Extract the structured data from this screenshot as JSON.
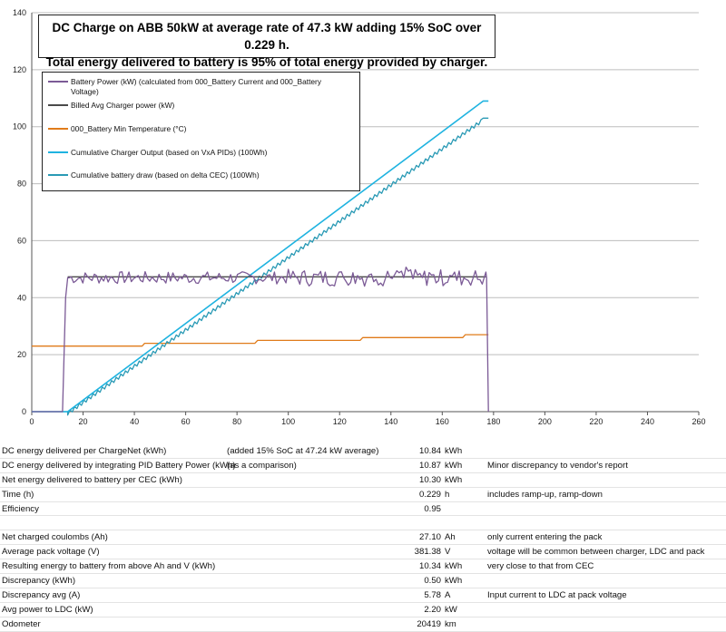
{
  "chart_data": {
    "type": "line",
    "title_line1": "DC Charge on ABB 50kW at average rate of 47.3 kW adding 15% SoC over 0.229 h.",
    "title_line2": "Total energy delivered to battery is 95% of total energy provided by charger.",
    "xlim": [
      0,
      260
    ],
    "ylim": [
      0,
      140
    ],
    "x_ticks": [
      0,
      20,
      40,
      60,
      80,
      100,
      120,
      140,
      160,
      180,
      200,
      220,
      240,
      260
    ],
    "y_ticks": [
      0,
      20,
      40,
      60,
      80,
      100,
      120,
      140
    ],
    "grid": "horizontal",
    "legend_position": "top-left",
    "series": [
      {
        "name": "Battery Power (kW) (calculated from 000_Battery Current and 000_Battery Voltage)",
        "color": "#7b5a96",
        "points": [
          [
            0,
            0
          ],
          [
            12,
            0
          ],
          [
            14,
            47
          ],
          [
            177,
            47
          ],
          [
            178,
            0
          ]
        ]
      },
      {
        "name": "Billed Avg Charger power (kW)",
        "color": "#4a4a4a",
        "points": [
          [
            14,
            47.3
          ],
          [
            177,
            47.3
          ]
        ]
      },
      {
        "name": "000_Battery Min Temperature (°C)",
        "color": "#e07b1a",
        "points": [
          [
            0,
            23
          ],
          [
            43,
            23
          ],
          [
            44,
            24
          ],
          [
            87,
            24
          ],
          [
            88,
            25
          ],
          [
            128,
            25
          ],
          [
            129,
            26
          ],
          [
            168,
            26
          ],
          [
            169,
            27
          ],
          [
            178,
            27
          ]
        ]
      },
      {
        "name": "Cumulative Charger Output (based on VxA PIDs) (100Wh)",
        "color": "#1fb3e0",
        "points": [
          [
            0,
            0
          ],
          [
            14,
            0
          ],
          [
            176,
            109
          ],
          [
            178,
            109
          ]
        ]
      },
      {
        "name": "Cumulative battery draw (based on delta CEC) (100Wh)",
        "color": "#2a9ab5",
        "points": [
          [
            0,
            0
          ],
          [
            14,
            0
          ],
          [
            176,
            103
          ],
          [
            178,
            103
          ]
        ]
      }
    ]
  },
  "table": {
    "rows": [
      [
        "DC energy delivered per ChargeNet (kWh)",
        "(added 15% SoC at 47.24 kW average)",
        "10.84",
        "kWh",
        ""
      ],
      [
        "DC energy delivered by integrating PID Battery Power (kWh)",
        "(as a comparison)",
        "10.87",
        "kWh",
        "Minor discrepancy to vendor's report"
      ],
      [
        "Net energy delivered to battery per CEC (kWh)",
        "",
        "10.30",
        "kWh",
        ""
      ],
      [
        "Time (h)",
        "",
        "0.229",
        "h",
        "includes ramp-up, ramp-down"
      ],
      [
        "Efficiency",
        "",
        "0.95",
        "",
        ""
      ],
      [
        "",
        "",
        "",
        "",
        ""
      ],
      [
        "Net charged coulombs (Ah)",
        "",
        "27.10",
        "Ah",
        "only current entering the pack"
      ],
      [
        "Average pack voltage (V)",
        "",
        "381.38",
        "V",
        "voltage will be common between charger, LDC and pack"
      ],
      [
        "Resulting energy to battery from above Ah and V (kWh)",
        "",
        "10.34",
        "kWh",
        "very close to that from CEC"
      ],
      [
        "Discrepancy (kWh)",
        "",
        "0.50",
        "kWh",
        ""
      ],
      [
        "Discrepancy avg (A)",
        "",
        "5.78",
        "A",
        "Input current to LDC at pack voltage"
      ],
      [
        "Avg power to LDC (kW)",
        "",
        "2.20",
        "kW",
        ""
      ],
      [
        "Odometer",
        "",
        "20419",
        "km",
        ""
      ]
    ]
  }
}
